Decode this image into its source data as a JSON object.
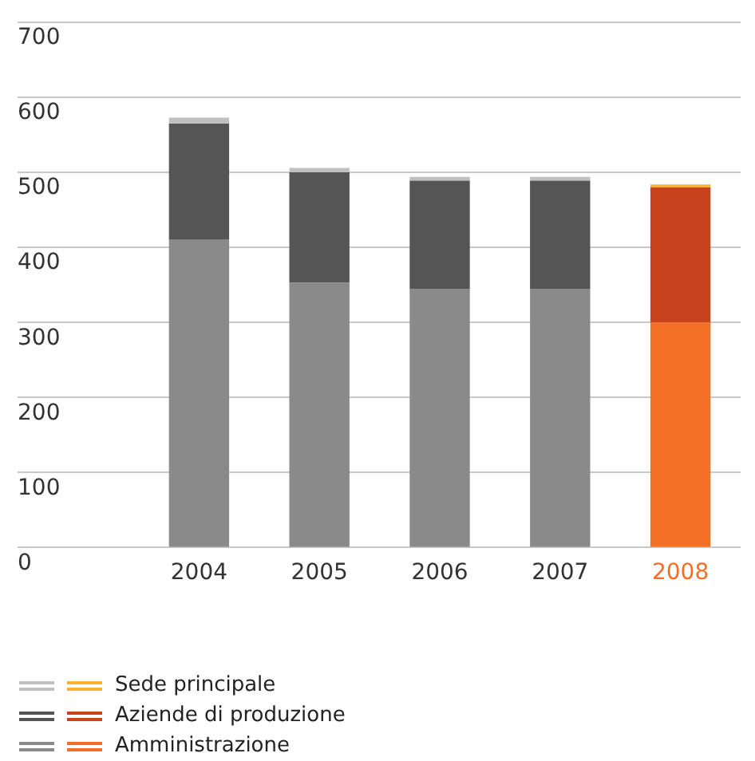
{
  "chart_data": {
    "type": "bar",
    "stacked": true,
    "categories": [
      "2004",
      "2005",
      "2006",
      "2007",
      "2008"
    ],
    "series": [
      {
        "name": "Amministrazione",
        "colors": [
          "#8a8a8a",
          "#8a8a8a",
          "#8a8a8a",
          "#8a8a8a",
          "#f36f25"
        ],
        "values": [
          410,
          353,
          345,
          345,
          300
        ]
      },
      {
        "name": "Aziende di produzione",
        "colors": [
          "#555555",
          "#555555",
          "#555555",
          "#555555",
          "#c8421e"
        ],
        "values": [
          155,
          147,
          144,
          144,
          180
        ]
      },
      {
        "name": "Sede principale",
        "colors": [
          "#c0c0c0",
          "#c0c0c0",
          "#c0c0c0",
          "#c0c0c0",
          "#f9b233"
        ],
        "values": [
          8,
          6,
          5,
          5,
          4
        ]
      }
    ],
    "ylim": [
      0,
      700
    ],
    "yticks": [
      0,
      100,
      200,
      300,
      400,
      500,
      600,
      700
    ],
    "grid": "y",
    "legend": "bottom left"
  }
}
